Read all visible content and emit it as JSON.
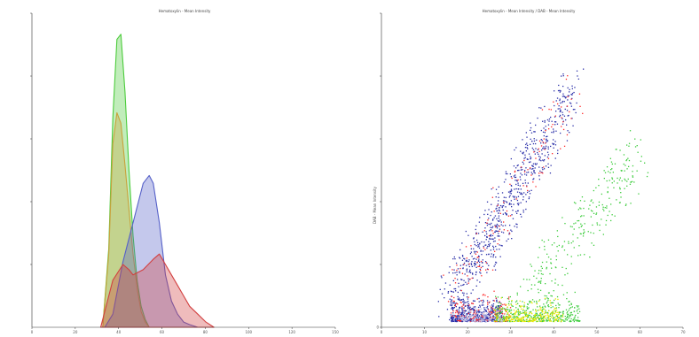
{
  "chart_data": [
    {
      "type": "area",
      "title": "Hematoxylin - Mean Intensity",
      "xlabel": "",
      "ylabel": "",
      "xlim": [
        0,
        150
      ],
      "ylim": [
        0,
        120
      ],
      "grid": false,
      "x_ticks": [
        "0",
        "20",
        "40",
        "60",
        "80",
        "100",
        "120",
        "150"
      ],
      "y_ticks": [
        "",
        "",
        "",
        "",
        ""
      ],
      "series": [
        {
          "color": "#4dcc3d",
          "x": [
            35,
            38,
            40,
            42,
            44,
            46,
            48,
            50,
            52,
            54,
            56,
            58
          ],
          "y": [
            0,
            30,
            80,
            110,
            112,
            90,
            60,
            35,
            18,
            8,
            3,
            0
          ]
        },
        {
          "color": "#c9a23c",
          "x": [
            35,
            38,
            40,
            42,
            44,
            46,
            48,
            50,
            52,
            54,
            56,
            58
          ],
          "y": [
            0,
            28,
            70,
            82,
            78,
            62,
            45,
            28,
            15,
            6,
            2,
            0
          ]
        },
        {
          "color": "#5560c8",
          "x": [
            36,
            40,
            45,
            50,
            55,
            58,
            60,
            63,
            66,
            69,
            72,
            75,
            78,
            82
          ],
          "y": [
            0,
            5,
            25,
            40,
            55,
            58,
            55,
            40,
            20,
            10,
            5,
            2,
            1,
            0
          ]
        },
        {
          "color": "#d24040",
          "x": [
            34,
            40,
            45,
            48,
            50,
            55,
            60,
            63,
            66,
            69,
            72,
            75,
            78,
            82,
            86,
            90
          ],
          "y": [
            0,
            18,
            24,
            22,
            20,
            22,
            26,
            28,
            24,
            20,
            16,
            12,
            8,
            5,
            2,
            0
          ]
        }
      ]
    },
    {
      "type": "scatter",
      "title": "Hematoxylin - Mean Intensity / DAB - Mean Intensity",
      "xlabel": "",
      "ylabel": "DAB - Mean Intensity",
      "xlim": [
        0,
        70
      ],
      "ylim": [
        0,
        50
      ],
      "grid": false,
      "x_ticks": [
        "0",
        "10",
        "20",
        "30",
        "40",
        "50",
        "60",
        "70"
      ],
      "y_ticks": [
        "0",
        "",
        "",
        "",
        "",
        ""
      ],
      "clusters": [
        {
          "color": "#2a2fa8",
          "n": 520,
          "x": [
            16,
            28
          ],
          "y": [
            1,
            5
          ]
        },
        {
          "color": "#ff2a2a",
          "n": 160,
          "x": [
            16,
            30
          ],
          "y": [
            1,
            6
          ]
        },
        {
          "color": "#3ccc3c",
          "n": 420,
          "x": [
            26,
            46
          ],
          "y": [
            1,
            6
          ]
        },
        {
          "color": "#e6e600",
          "n": 240,
          "x": [
            26,
            42
          ],
          "y": [
            1,
            5
          ]
        },
        {
          "color": "#c8c8e8",
          "n": 140,
          "x": [
            18,
            28
          ],
          "y": [
            1,
            4
          ]
        },
        {
          "color": "#2a2fa8",
          "n": 700,
          "x": [
            16,
            44
          ],
          "y": [
            5,
            38
          ],
          "diag": true
        },
        {
          "color": "#ff2a2a",
          "n": 130,
          "x": [
            16,
            44
          ],
          "y": [
            5,
            38
          ],
          "diag": true
        },
        {
          "color": "#3ccc3c",
          "n": 260,
          "x": [
            34,
            60
          ],
          "y": [
            6,
            28
          ],
          "diag": true
        }
      ]
    }
  ]
}
